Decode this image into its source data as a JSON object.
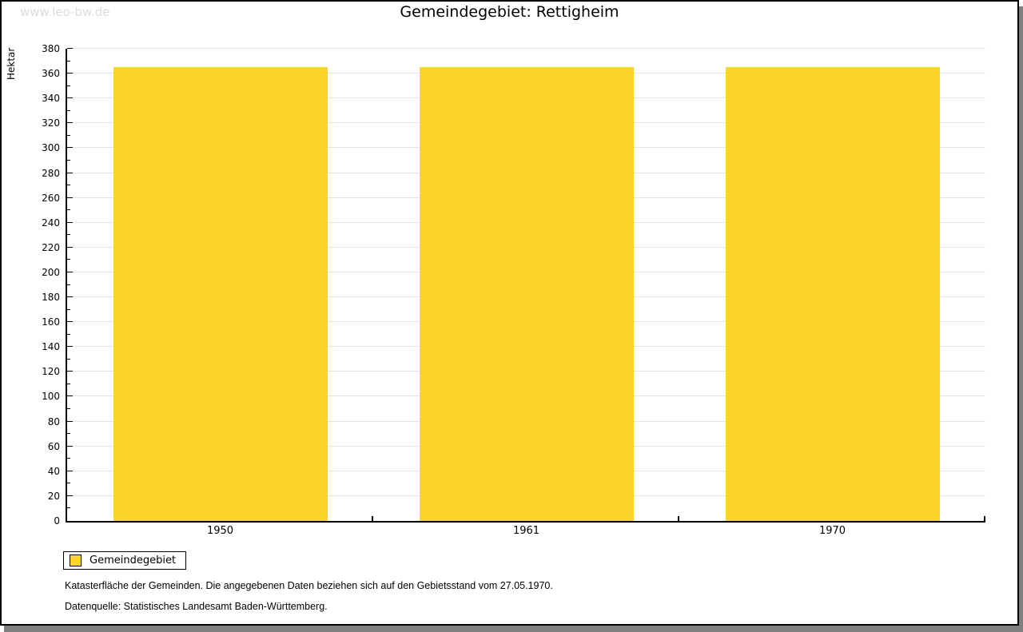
{
  "watermark": "www.leo-bw.de",
  "title": "Gemeindegebiet: Rettigheim",
  "legend": {
    "label": "Gemeindegebiet"
  },
  "footer": {
    "line1": "Katasterfläche der Gemeinden. Die angegebenen Daten beziehen sich auf den Gebietsstand vom 27.05.1970.",
    "line2": "Datenquelle: Statistisches Landesamt Baden-Württemberg."
  },
  "colors": {
    "bar": "#fcd42c",
    "grid": "#e4e4e4",
    "axis": "#000000",
    "watermark": "#dcdcdc",
    "shadow": "#7f7f7f"
  },
  "chart_data": {
    "type": "bar",
    "title": "Gemeindegebiet: Rettigheim",
    "categories": [
      "1950",
      "1961",
      "1970"
    ],
    "series": [
      {
        "name": "Gemeindegebiet",
        "values": [
          365,
          365,
          365
        ]
      }
    ],
    "xlabel": "",
    "ylabel": "Hektar",
    "ylim": [
      0,
      380
    ],
    "ytick_step": 20,
    "minor_tick_step": 10,
    "grid": true,
    "legend_position": "bottom-left",
    "bar_color": "#fcd42c"
  }
}
